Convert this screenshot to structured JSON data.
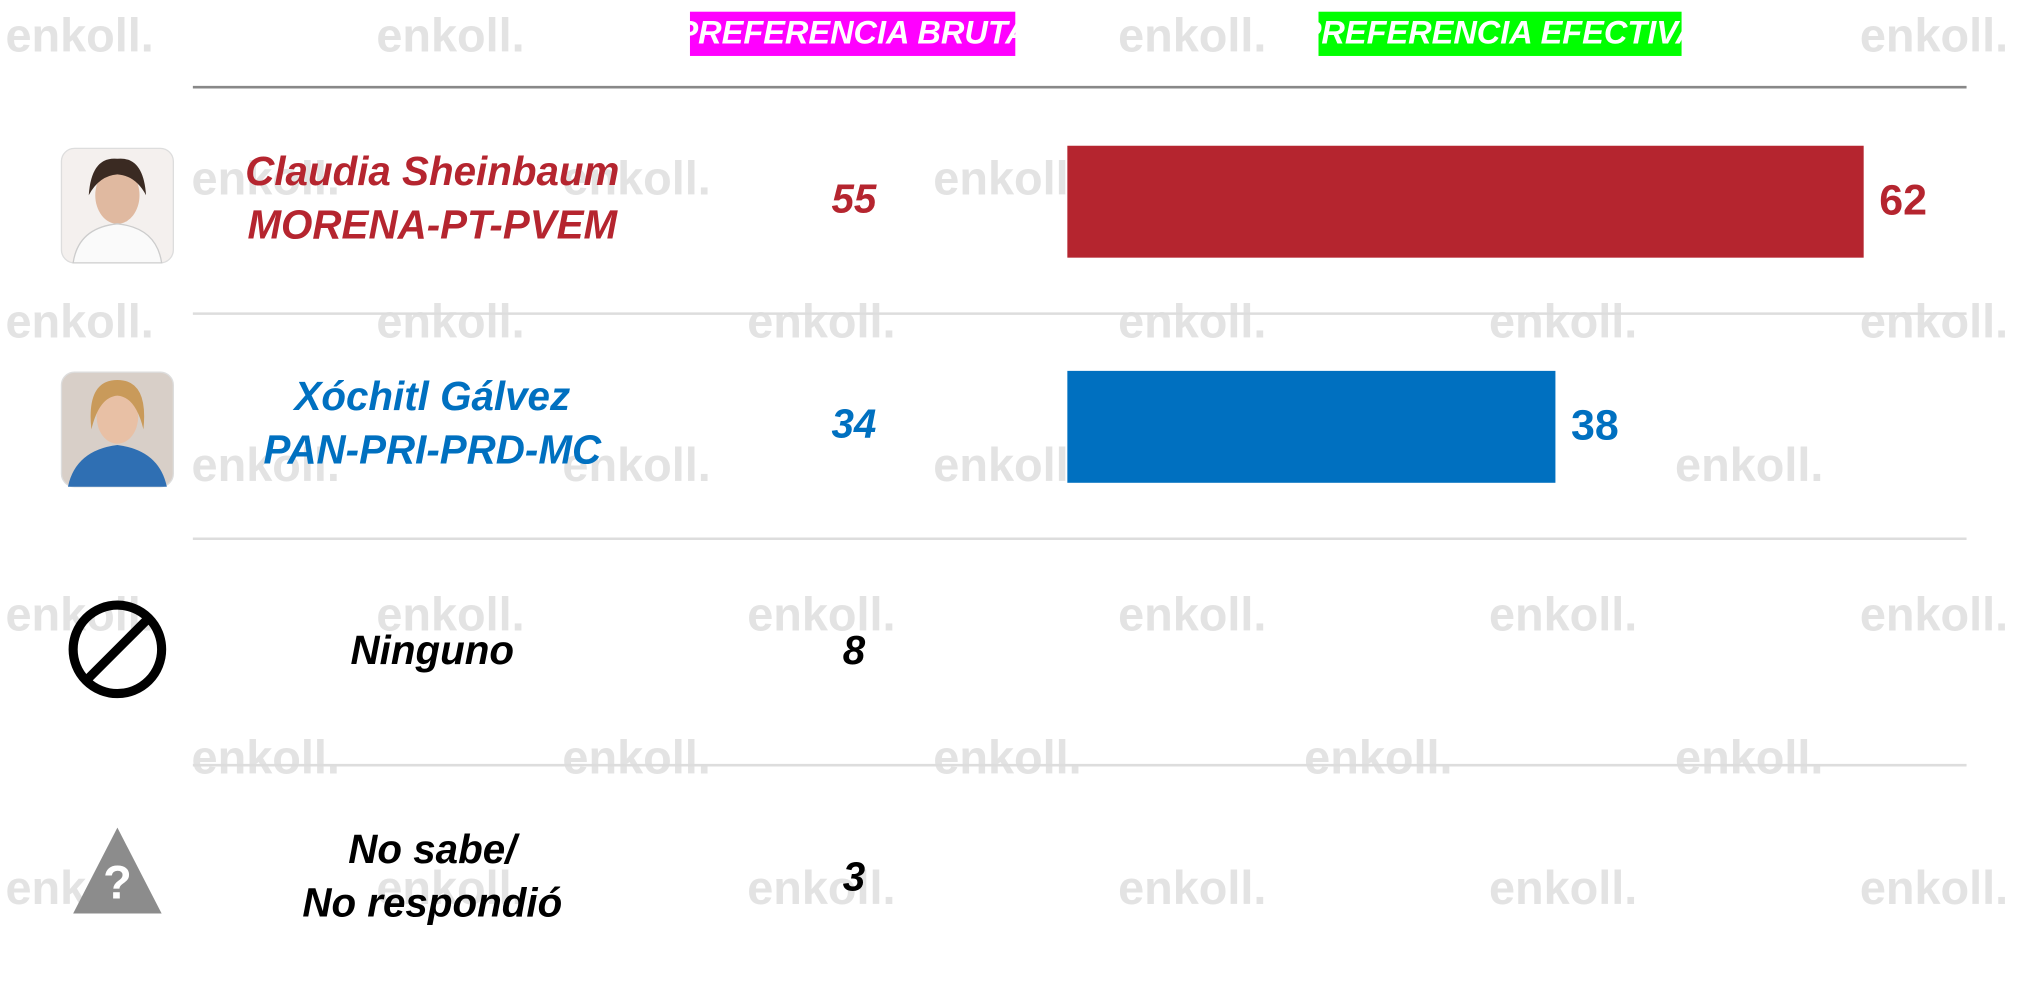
{
  "chart_data": {
    "type": "bar",
    "orientation": "horizontal",
    "watermark": "enkoll.",
    "categories": [
      [
        "Claudia Sheinbaum",
        "MORENA-PT-PVEM"
      ],
      [
        "Xóchitl Gálvez",
        "PAN-PRI-PRD-MC"
      ],
      [
        "Ninguno"
      ],
      [
        "No sabe/",
        "No respondió"
      ]
    ],
    "category_colors": [
      "#b5252f",
      "#0070c0",
      "#000000",
      "#000000"
    ],
    "unknown_icon": "?",
    "series": [
      {
        "name": "PREFERENCIA BRUTA",
        "color": "#ff00ff",
        "values": [
          55,
          34,
          8,
          3
        ]
      },
      {
        "name": "PREFERENCIA EFECTIVA",
        "color": "#00ff00",
        "values": [
          62,
          38,
          null,
          null
        ]
      }
    ]
  }
}
